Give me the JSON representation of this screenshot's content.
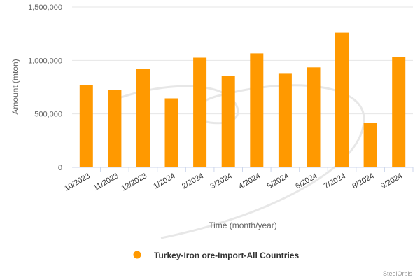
{
  "chart_data": {
    "type": "bar",
    "categories": [
      "10/2023",
      "11/2023",
      "12/2023",
      "1/2024",
      "2/2024",
      "3/2024",
      "4/2024",
      "5/2024",
      "6/2024",
      "7/2024",
      "8/2024",
      "9/2024"
    ],
    "series": [
      {
        "name": "Turkey-Iron ore-Import-All Countries",
        "color": "#ff9900",
        "values": [
          770000,
          725000,
          920000,
          645000,
          1025000,
          855000,
          1065000,
          875000,
          935000,
          1260000,
          415000,
          1030000
        ]
      }
    ],
    "xlabel": "Time (month/year)",
    "ylabel": "Amount (mton)",
    "ylim": [
      0,
      1500000
    ],
    "yticks": [
      0,
      500000,
      1000000,
      1500000
    ],
    "ytick_labels": [
      "0",
      "500,000",
      "1,000,000",
      "1,500,000"
    ],
    "grid": true,
    "legend": "bottom-center"
  },
  "credit": "SteelOrbis"
}
